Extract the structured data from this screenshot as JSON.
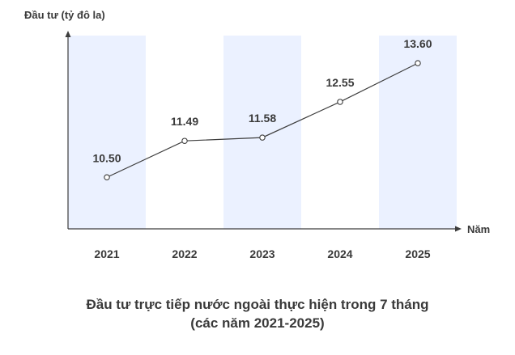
{
  "chart_data": {
    "type": "line",
    "ylabel": "Đầu tư (tỷ đô la)",
    "xlabel": "Năm",
    "categories": [
      "2021",
      "2022",
      "2023",
      "2024",
      "2025"
    ],
    "values": [
      10.5,
      11.49,
      11.58,
      12.55,
      13.6
    ],
    "value_labels": [
      "10.50",
      "11.49",
      "11.58",
      "12.55",
      "13.60"
    ],
    "ylim": [
      9.1,
      14.35
    ],
    "shaded_columns": [
      "2021",
      "2023",
      "2025"
    ],
    "grid": false,
    "colors": {
      "band": "#ebf1ff",
      "line": "#3d3d3d",
      "axis": "#3d3d3d",
      "text": "#3a3a3a"
    }
  },
  "caption": {
    "line1": "Đầu tư trực tiếp nước ngoài thực hiện trong 7 tháng",
    "line2": "(các năm 2021-2025)"
  }
}
